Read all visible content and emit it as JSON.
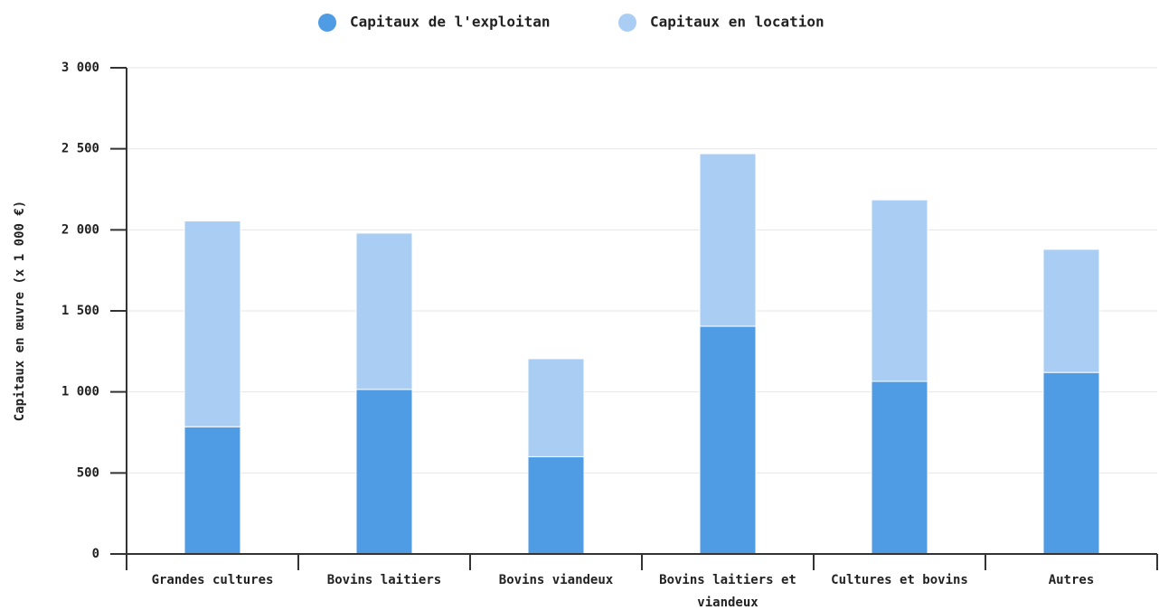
{
  "chart_data": {
    "type": "stacked_bar",
    "categories": [
      "Grandes cultures",
      "Bovins laitiers",
      "Bovins viandeux",
      "Bovins laitiers et viandeux",
      "Cultures et bovins",
      "Autres"
    ],
    "series": [
      {
        "name": "Capitaux de l'exploitan",
        "color": "#4f9be4",
        "values": [
          785,
          1015,
          600,
          1405,
          1065,
          1120
        ]
      },
      {
        "name": "Capitaux en location",
        "color": "#aacef3",
        "values": [
          1270,
          965,
          605,
          1065,
          1120,
          760
        ]
      }
    ],
    "y_label": "Capitaux en œuvre (x 1 000 €)",
    "ylim": [
      0,
      3000
    ],
    "yticks": [
      0,
      500,
      {
        "value": 1000,
        "label": "1 000"
      },
      {
        "value": 1500,
        "label": "1 500"
      },
      {
        "value": 2000,
        "label": "2 000"
      },
      {
        "value": 2500,
        "label": "2 500"
      },
      {
        "value": 3000,
        "label": "3 000"
      }
    ],
    "grid": true,
    "legend": "top"
  }
}
